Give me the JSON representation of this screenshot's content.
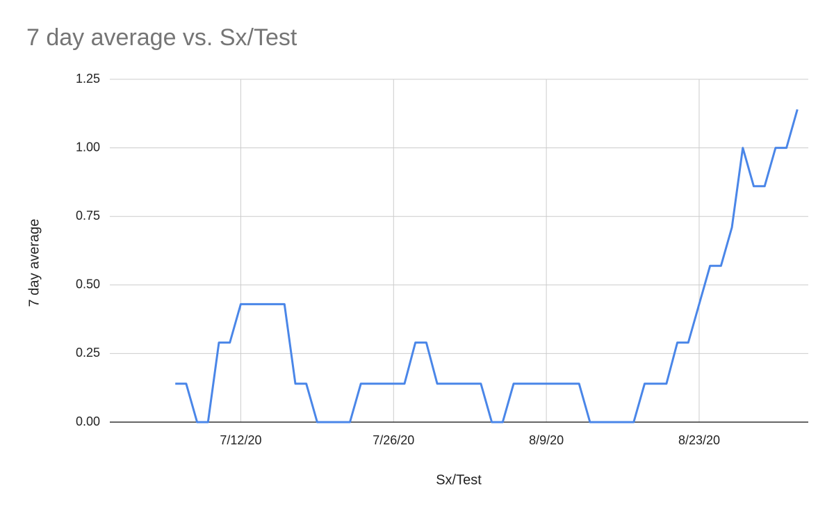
{
  "chart_data": {
    "type": "line",
    "title": "7 day average vs. Sx/Test",
    "x_label": "Sx/Test",
    "y_label": "7 day average",
    "x": [
      "7/6/20",
      "7/7/20",
      "7/8/20",
      "7/9/20",
      "7/10/20",
      "7/11/20",
      "7/12/20",
      "7/13/20",
      "7/14/20",
      "7/15/20",
      "7/16/20",
      "7/17/20",
      "7/18/20",
      "7/19/20",
      "7/20/20",
      "7/21/20",
      "7/22/20",
      "7/23/20",
      "7/24/20",
      "7/25/20",
      "7/26/20",
      "7/27/20",
      "7/28/20",
      "7/29/20",
      "7/30/20",
      "7/31/20",
      "8/1/20",
      "8/2/20",
      "8/3/20",
      "8/4/20",
      "8/5/20",
      "8/6/20",
      "8/7/20",
      "8/8/20",
      "8/9/20",
      "8/10/20",
      "8/11/20",
      "8/12/20",
      "8/13/20",
      "8/14/20",
      "8/15/20",
      "8/16/20",
      "8/17/20",
      "8/18/20",
      "8/19/20",
      "8/20/20",
      "8/21/20",
      "8/22/20",
      "8/23/20",
      "8/24/20",
      "8/25/20",
      "8/26/20",
      "8/27/20",
      "8/28/20",
      "8/29/20",
      "8/30/20",
      "8/31/20",
      "9/1/20"
    ],
    "series": [
      {
        "name": "7 day average",
        "color": "#4a86e8",
        "values": [
          0.14,
          0.14,
          0,
          0,
          0.29,
          0.29,
          0.43,
          0.43,
          0.43,
          0.43,
          0.43,
          0.14,
          0.14,
          0,
          0,
          0,
          0,
          0.14,
          0.14,
          0.14,
          0.14,
          0.14,
          0.29,
          0.29,
          0.14,
          0.14,
          0.14,
          0.14,
          0.14,
          0,
          0,
          0.14,
          0.14,
          0.14,
          0.14,
          0.14,
          0.14,
          0.14,
          0,
          0,
          0,
          0,
          0,
          0.14,
          0.14,
          0.14,
          0.29,
          0.29,
          0.43,
          0.57,
          0.57,
          0.71,
          1,
          0.86,
          0.86,
          1,
          1,
          1.14
        ]
      }
    ],
    "xlim": [
      "6/30/20",
      "9/2/20"
    ],
    "xticks": [
      "7/12/20",
      "7/26/20",
      "8/9/20",
      "8/23/20"
    ],
    "ylim": [
      0,
      1.25
    ],
    "yticks": [
      {
        "value": 0,
        "label": "0.00"
      },
      0.25,
      {
        "value": 0.5,
        "label": "0.50"
      },
      0.75,
      {
        "value": 1,
        "label": "1.00"
      },
      1.25
    ],
    "grid": true
  }
}
